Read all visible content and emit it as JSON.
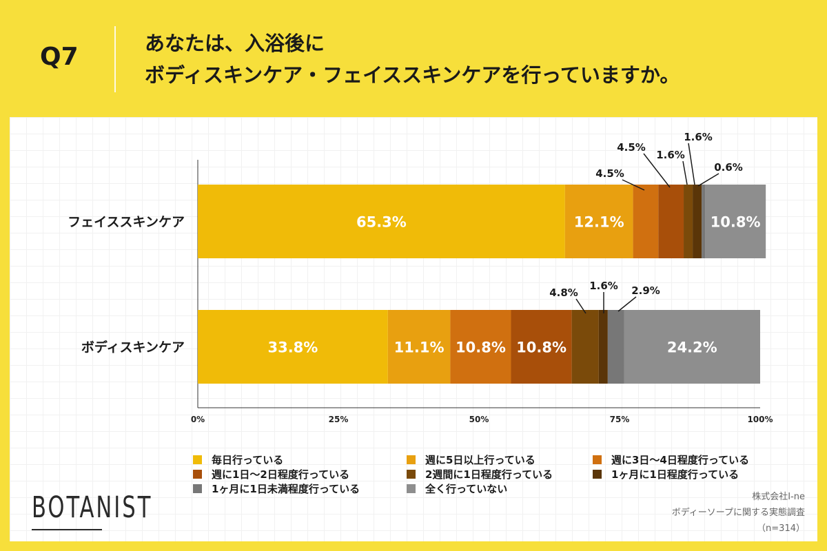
{
  "header": {
    "question_number": "Q7",
    "title_line1": "あなたは、入浴後に",
    "title_line2": "ボディスキンケア・フェイススキンケアを行っていますか。"
  },
  "chart_data": {
    "type": "bar",
    "orientation": "horizontal",
    "stacked": true,
    "categories": [
      "フェイススキンケア",
      "ボディスキンケア"
    ],
    "x_ticks": [
      "0%",
      "25%",
      "50%",
      "75%",
      "100%"
    ],
    "xlim": [
      0,
      100
    ],
    "series": [
      {
        "name": "毎日行っている",
        "color": "#f0bb08",
        "values": [
          65.3,
          33.8
        ],
        "labels": [
          "65.3%",
          "33.8%"
        ]
      },
      {
        "name": "週に5日以上行っている",
        "color": "#e8a010",
        "values": [
          12.1,
          11.1
        ],
        "labels": [
          "12.1%",
          "11.1%"
        ]
      },
      {
        "name": "週に3日〜4日程度行っている",
        "color": "#d07010",
        "values": [
          4.5,
          10.8
        ],
        "labels": [
          "4.5%",
          "10.8%"
        ]
      },
      {
        "name": "週に1日〜2日程度行っている",
        "color": "#a84f0a",
        "values": [
          4.5,
          10.8
        ],
        "labels": [
          "4.5%",
          "10.8%"
        ]
      },
      {
        "name": "2週間に1日程度行っている",
        "color": "#7a4a0a",
        "values": [
          1.6,
          4.8
        ],
        "labels": [
          "1.6%",
          "4.8%"
        ]
      },
      {
        "name": "1ヶ月に1日程度行っている",
        "color": "#5a3508",
        "values": [
          1.6,
          1.6
        ],
        "labels": [
          "1.6%",
          "1.6%"
        ]
      },
      {
        "name": "1ヶ月に1日未満程度行っている",
        "color": "#777777",
        "values": [
          0.6,
          2.9
        ],
        "labels": [
          "0.6%",
          "2.9%"
        ]
      },
      {
        "name": "全く行っていない",
        "color": "#8e8e8e",
        "values": [
          10.8,
          24.2
        ],
        "labels": [
          "10.8%",
          "24.2%"
        ]
      }
    ]
  },
  "footer": {
    "logo": "BOTANIST",
    "source_company": "株式会社I-ne",
    "source_survey": "ボディーソープに関する実態調査",
    "source_n": "（n=314）"
  }
}
